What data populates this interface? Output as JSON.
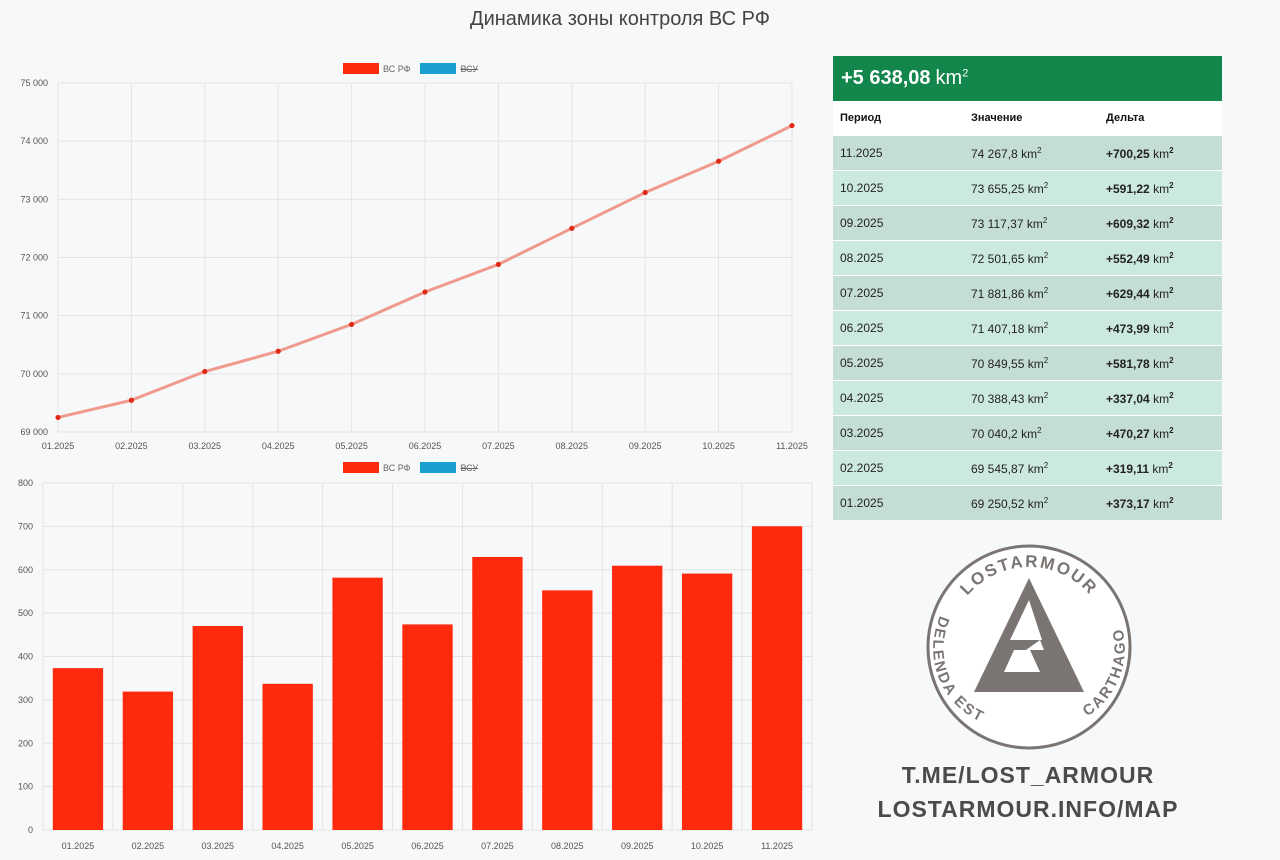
{
  "title": "Динамика зоны контроля ВС РФ",
  "legend": {
    "ru": "ВС РФ",
    "ua": "ВСУ",
    "ru_color": "#ff2a0d",
    "ua_color": "#1aa0d0"
  },
  "summary": {
    "value": "+5 638,08",
    "unit": "km",
    "sup": "2"
  },
  "table": {
    "headers": [
      "Период",
      "Значение",
      "Дельта"
    ],
    "rows": [
      {
        "period": "11.2025",
        "value": "74 267,8",
        "delta": "+700,25"
      },
      {
        "period": "10.2025",
        "value": "73 655,25",
        "delta": "+591,22"
      },
      {
        "period": "09.2025",
        "value": "73 117,37",
        "delta": "+609,32"
      },
      {
        "period": "08.2025",
        "value": "72 501,65",
        "delta": "+552,49"
      },
      {
        "period": "07.2025",
        "value": "71 881,86",
        "delta": "+629,44"
      },
      {
        "period": "06.2025",
        "value": "71 407,18",
        "delta": "+473,99"
      },
      {
        "period": "05.2025",
        "value": "70 849,55",
        "delta": "+581,78"
      },
      {
        "period": "04.2025",
        "value": "70 388,43",
        "delta": "+337,04"
      },
      {
        "period": "03.2025",
        "value": "70 040,2",
        "delta": "+470,27"
      },
      {
        "period": "02.2025",
        "value": "69 545,87",
        "delta": "+319,11"
      },
      {
        "period": "01.2025",
        "value": "69 250,52",
        "delta": "+373,17"
      }
    ],
    "unit": "km",
    "unit_sup": "2"
  },
  "logo": {
    "top_text": "LOSTARMOUR",
    "left_text": "DELENDA EST",
    "right_text": "CARTHAGO",
    "color": "#7a7573"
  },
  "links": {
    "telegram": "T.ME/LOST_ARMOUR",
    "site": "LOSTARMOUR.INFO/MAP"
  },
  "chart_data": [
    {
      "type": "line",
      "categories": [
        "01.2025",
        "02.2025",
        "03.2025",
        "04.2025",
        "05.2025",
        "06.2025",
        "07.2025",
        "08.2025",
        "09.2025",
        "10.2025",
        "11.2025"
      ],
      "series": [
        {
          "name": "ВС РФ",
          "color": "#ef9a8c",
          "values": [
            69250.52,
            69545.87,
            70040.2,
            70388.43,
            70849.55,
            71407.18,
            71881.86,
            72501.65,
            73117.37,
            73655.25,
            74267.8
          ]
        }
      ],
      "ylim": [
        69000,
        75000
      ],
      "yticks": [
        "69 000",
        "70 000",
        "71 000",
        "72 000",
        "73 000",
        "74 000",
        "75 000"
      ],
      "grid": true,
      "legend": "top-center"
    },
    {
      "type": "bar",
      "categories": [
        "01.2025",
        "02.2025",
        "03.2025",
        "04.2025",
        "05.2025",
        "06.2025",
        "07.2025",
        "08.2025",
        "09.2025",
        "10.2025",
        "11.2025"
      ],
      "series": [
        {
          "name": "ВС РФ",
          "color": "#ff2a0d",
          "values": [
            373.17,
            319.11,
            470.27,
            337.04,
            581.78,
            473.99,
            629.44,
            552.49,
            609.32,
            591.22,
            700.25
          ]
        }
      ],
      "ylim": [
        0,
        800
      ],
      "yticks": [
        "0",
        "100",
        "200",
        "300",
        "400",
        "500",
        "600",
        "700",
        "800"
      ],
      "grid": true,
      "legend": "top-center"
    }
  ]
}
